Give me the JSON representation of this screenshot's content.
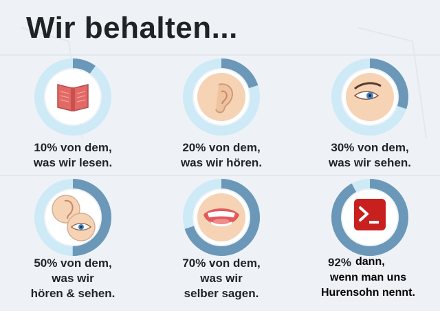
{
  "title": "Wir behalten...",
  "items": [
    {
      "icon": "book-icon",
      "percent": 0.1,
      "line1": "10% von dem,",
      "line2": "was wir lesen."
    },
    {
      "icon": "ear-icon",
      "percent": 0.2,
      "line1": "20% von dem,",
      "line2": "was wir hören."
    },
    {
      "icon": "eye-icon",
      "percent": 0.3,
      "line1": "30% von dem,",
      "line2": "was wir sehen."
    },
    {
      "icon": "ear-and-eye-icon",
      "percent": 0.5,
      "line1": "50% von dem,",
      "line2": "was wir",
      "line3": "hören & sehen."
    },
    {
      "icon": "mouth-icon",
      "percent": 0.7,
      "line1": "70% von dem,",
      "line2": "was wir",
      "line3": "selber sagen."
    },
    {
      "icon": "terminal-icon",
      "percent": 0.92,
      "percent_label": "92%",
      "line1": "dann,",
      "line2": "wenn man uns",
      "line3": "Hurensohn nennt."
    }
  ],
  "colors": {
    "background": "#eef2f6",
    "ring_track": "#cdeaf6",
    "ring_fill": "#6b98b8",
    "icon_disc": "#ffffff",
    "text": "#1f2326",
    "terminal_red": "#c8201f"
  }
}
